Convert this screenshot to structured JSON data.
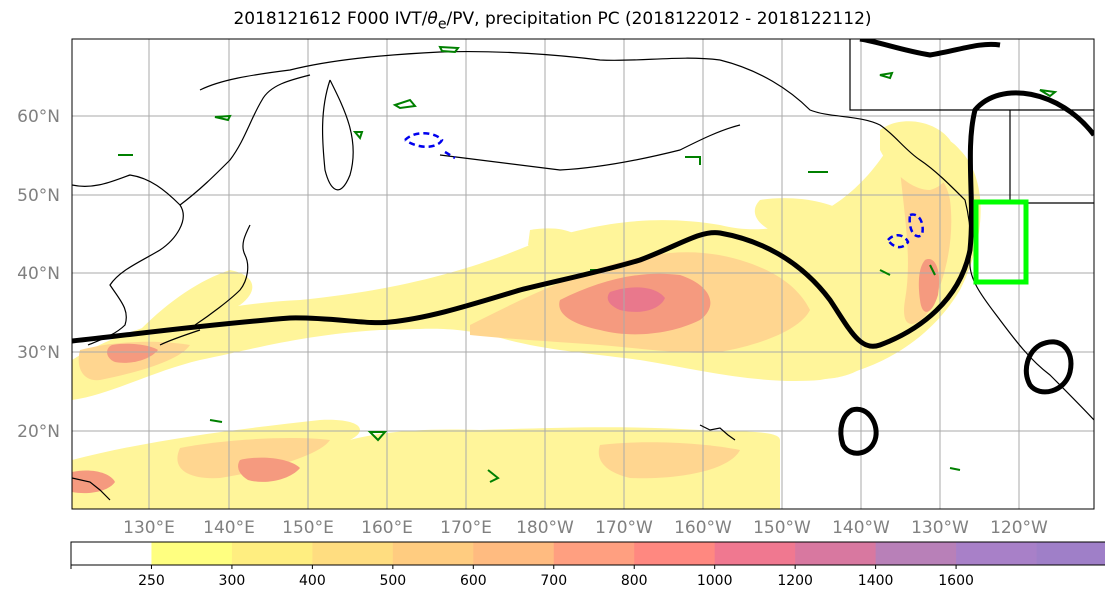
{
  "title": "2018121612 F000 IVT/θe/PV, precipitation PC (2018122012 - 2018122112)",
  "title_parts": {
    "prefix": "2018121612 F000 IVT/",
    "theta": "θ",
    "subscript": "e",
    "suffix": "/PV, precipitation PC (2018122012 - 2018122112)"
  },
  "map": {
    "lat_labels": [
      "60°N",
      "50°N",
      "40°N",
      "30°N",
      "20°N"
    ],
    "lon_labels": [
      "130°E",
      "140°E",
      "150°E",
      "160°E",
      "170°E",
      "180°W",
      "170°W",
      "160°W",
      "150°W",
      "140°W",
      "130°W",
      "120°W"
    ],
    "grid": true
  },
  "colorbar": {
    "ticks": [
      "250",
      "300",
      "400",
      "500",
      "600",
      "700",
      "800",
      "1000",
      "1200",
      "1400",
      "1600"
    ],
    "colors": [
      "#ffffff",
      "#ffff80",
      "#ffee80",
      "#ffdd80",
      "#ffcc80",
      "#ffbb80",
      "#ff9f80",
      "#ff8880",
      "#f07890",
      "#d878a0",
      "#b880b8",
      "#a880c8",
      "#9f7fc8"
    ],
    "extend": "max"
  },
  "colors": {
    "ivt_low": "#fff59a",
    "ivt_mid": "#ffd690",
    "ivt_high": "#f59a7f",
    "ivt_max": "#e9788c",
    "pv_contour": "#000000",
    "theta_contour": "#008000",
    "dashed_contour": "#0000ee",
    "box": "#00ff00",
    "coast": "#000000"
  }
}
